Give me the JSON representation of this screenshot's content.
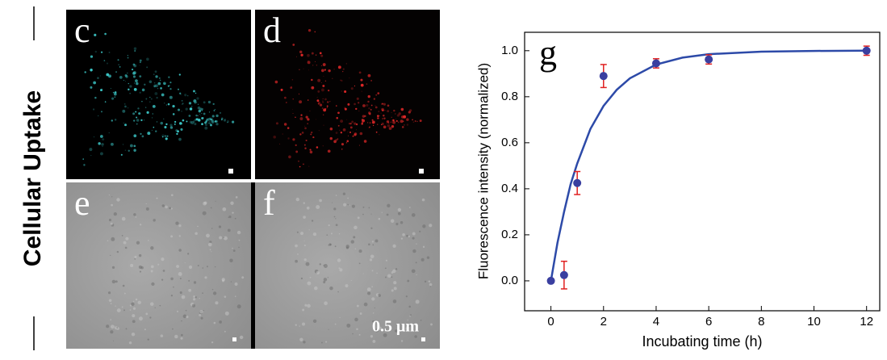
{
  "side_label": "Cellular Uptake",
  "panels": [
    {
      "label": "c"
    },
    {
      "label": "d"
    },
    {
      "label": "e"
    },
    {
      "label": "f"
    }
  ],
  "scale_label": "0.5 μm",
  "chart_data": {
    "type": "scatter",
    "panel_label": "g",
    "x_label": "Incubating time (h)",
    "y_label": "Fluorescence intensity (normalized)",
    "x": [
      0,
      0.5,
      1,
      2,
      4,
      6,
      12
    ],
    "values": [
      0,
      0.025,
      0.425,
      0.89,
      0.945,
      0.962,
      1.0
    ],
    "errors": [
      0,
      0.06,
      0.05,
      0.05,
      0.02,
      0.02,
      0.02
    ],
    "color": "#3a3fa0",
    "error_color": "#e02020",
    "fit": {
      "x": [
        0,
        0.25,
        0.5,
        0.75,
        1,
        1.5,
        2,
        2.5,
        3,
        4,
        5,
        6,
        8,
        10,
        12
      ],
      "values": [
        0,
        0.165,
        0.3,
        0.42,
        0.51,
        0.66,
        0.76,
        0.83,
        0.88,
        0.94,
        0.97,
        0.985,
        0.996,
        0.999,
        1.0
      ],
      "color": "#2d4aa8"
    },
    "xlim": [
      -1,
      12.5
    ],
    "ylim": [
      -0.13,
      1.08
    ],
    "xticks": [
      0,
      2,
      4,
      6,
      8,
      10,
      12
    ],
    "yticks": [
      {
        "value": 0,
        "label": "0.0"
      },
      0.2,
      0.4,
      0.6,
      0.8,
      {
        "value": 1,
        "label": "1.0"
      }
    ]
  }
}
